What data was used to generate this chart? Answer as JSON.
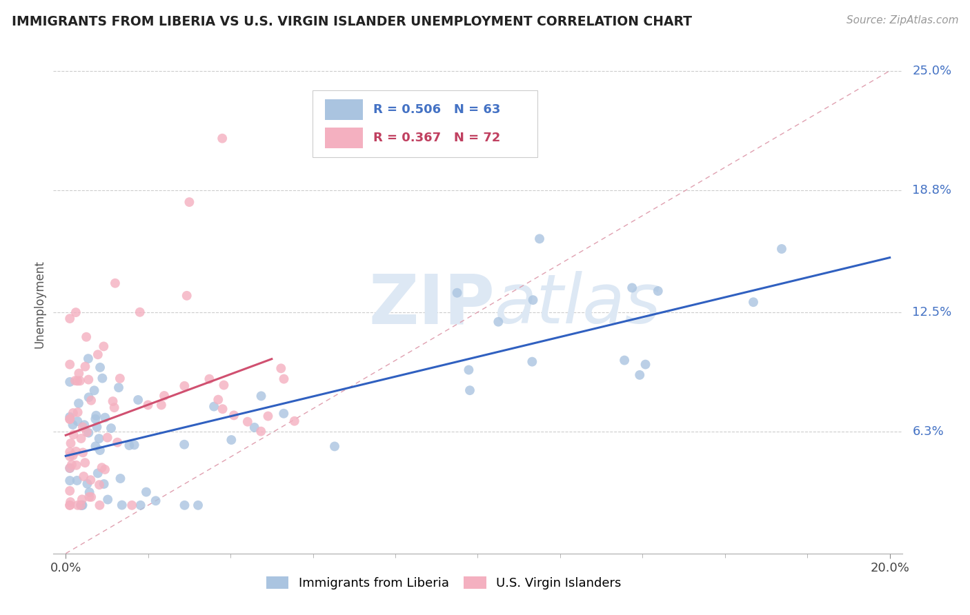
{
  "title": "IMMIGRANTS FROM LIBERIA VS U.S. VIRGIN ISLANDER UNEMPLOYMENT CORRELATION CHART",
  "source": "Source: ZipAtlas.com",
  "ylabel": "Unemployment",
  "xlim": [
    0.0,
    0.2
  ],
  "ylim": [
    0.0,
    0.25
  ],
  "ytick_positions": [
    0.063,
    0.125,
    0.188,
    0.25
  ],
  "ytick_labels": [
    "6.3%",
    "12.5%",
    "18.8%",
    "25.0%"
  ],
  "blue_R": "0.506",
  "blue_N": "63",
  "pink_R": "0.367",
  "pink_N": "72",
  "blue_color": "#aac4e0",
  "pink_color": "#f4b0c0",
  "blue_line_color": "#3060c0",
  "pink_line_color": "#d05070",
  "diag_line_color": "#e0a0b0",
  "label_color_blue": "#4472c4",
  "label_color_pink": "#c04060",
  "watermark_color": "#dde8f4",
  "background": "#ffffff"
}
